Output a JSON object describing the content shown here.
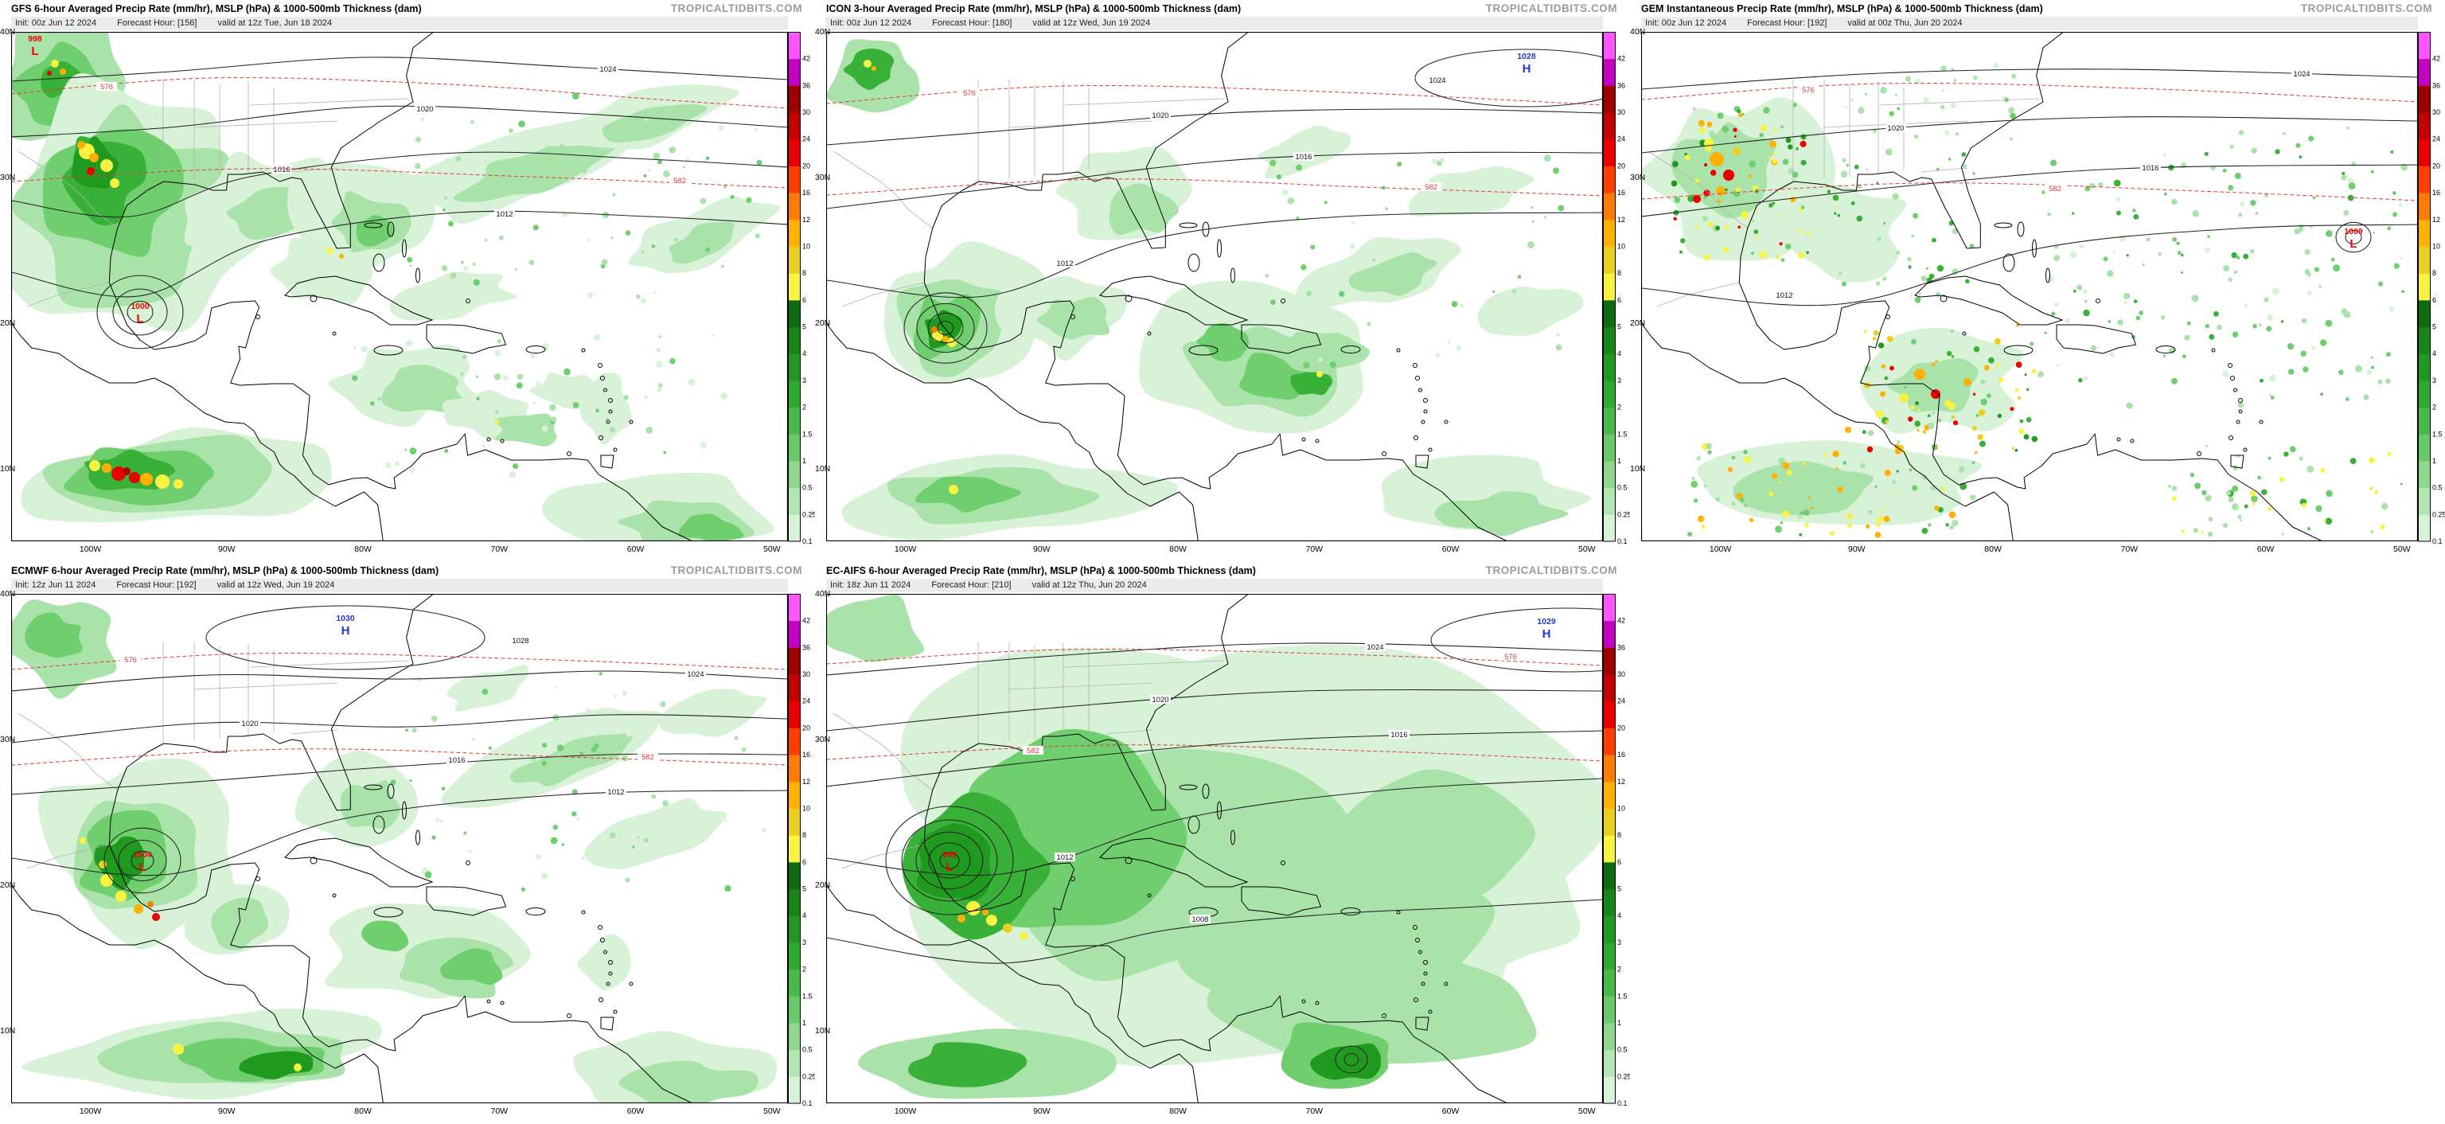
{
  "site": {
    "watermark": "TROPICALTIDBITS.COM"
  },
  "symbols": {
    "low": "L",
    "high": "H"
  },
  "axes": {
    "lon": [
      "100W",
      "90W",
      "80W",
      "70W",
      "60W",
      "50W"
    ],
    "lat": [
      "40N",
      "30N",
      "20N",
      "10N"
    ]
  },
  "colorbar": {
    "units": "mm/hr",
    "labels": [
      "0.1",
      "0.25",
      "0.5",
      "1",
      "1.5",
      "2",
      "3",
      "4",
      "5",
      "6",
      "8",
      "10",
      "12",
      "16",
      "20",
      "24",
      "30",
      "36",
      "42"
    ],
    "colors": [
      "#d8f2d8",
      "#b4e6b4",
      "#8ed88e",
      "#68ca68",
      "#46ba46",
      "#2eaa2e",
      "#219821",
      "#178517",
      "#0e6b0e",
      "#f7f340",
      "#e8cf20",
      "#ffb000",
      "#ff7c00",
      "#ff3f00",
      "#ea0000",
      "#c40000",
      "#9e0000",
      "#c400c4",
      "#ff54ff"
    ]
  },
  "panels": [
    {
      "id": "gfs",
      "title": "GFS 6-hour Averaged Precip Rate (mm/hr), MSLP (hPa) & 1000-500mb Thickness (dam)",
      "init": "Init: 00z Jun 12 2024",
      "fhr": "Forecast Hour: [156]",
      "valid": "valid at 12z Tue, Jun 18 2024",
      "low": {
        "value": "1000"
      },
      "low2": {
        "value": "998"
      },
      "isobar_labels": [
        "1024",
        "1020",
        "1016",
        "1012"
      ],
      "thickness_labels": [
        "576",
        "582"
      ]
    },
    {
      "id": "icon",
      "title": "ICON 3-hour Averaged Precip Rate (mm/hr), MSLP (hPa) & 1000-500mb Thickness (dam)",
      "init": "Init: 00z Jun 12 2024",
      "fhr": "Forecast Hour: [180]",
      "valid": "valid at 12z Wed, Jun 19 2024",
      "high": {
        "value": "1028"
      },
      "isobar_labels": [
        "1024",
        "1020",
        "1016",
        "1012"
      ],
      "thickness_labels": [
        "576",
        "582"
      ]
    },
    {
      "id": "gem",
      "title": "GEM Instantaneous Precip Rate (mm/hr), MSLP (hPa) & 1000-500mb Thickness (dam)",
      "init": "Init: 00z Jun 12 2024",
      "fhr": "Forecast Hour: [192]",
      "valid": "valid at 00z Thu, Jun 20 2024",
      "low": {
        "value": "1009"
      },
      "isobar_labels": [
        "1024",
        "1020",
        "1016",
        "1012"
      ],
      "thickness_labels": [
        "576",
        "582"
      ]
    },
    {
      "id": "ecmwf",
      "title": "ECMWF 6-hour Averaged Precip Rate (mm/hr), MSLP (hPa) & 1000-500mb Thickness (dam)",
      "init": "Init: 12z Jun 11 2024",
      "fhr": "Forecast Hour: [192]",
      "valid": "valid at 12z Wed, Jun 19 2024",
      "low": {
        "value": "1004"
      },
      "high": {
        "value": "1030"
      },
      "isobar_labels": [
        "1028",
        "1024",
        "1020",
        "1016",
        "1012"
      ],
      "thickness_labels": [
        "576",
        "582"
      ]
    },
    {
      "id": "ecaifs",
      "title": "EC-AIFS 6-hour Averaged Precip Rate (mm/hr), MSLP (hPa) & 1000-500mb Thickness (dam)",
      "init": "Init: 18z Jun 11 2024",
      "fhr": "Forecast Hour: [210]",
      "valid": "valid at 12z Thu, Jun 20 2024",
      "low": {
        "value": "999"
      },
      "high": {
        "value": "1029"
      },
      "isobar_labels": [
        "1024",
        "1020",
        "1016",
        "1012",
        "1008"
      ],
      "thickness_labels": [
        "576",
        "582"
      ]
    }
  ]
}
